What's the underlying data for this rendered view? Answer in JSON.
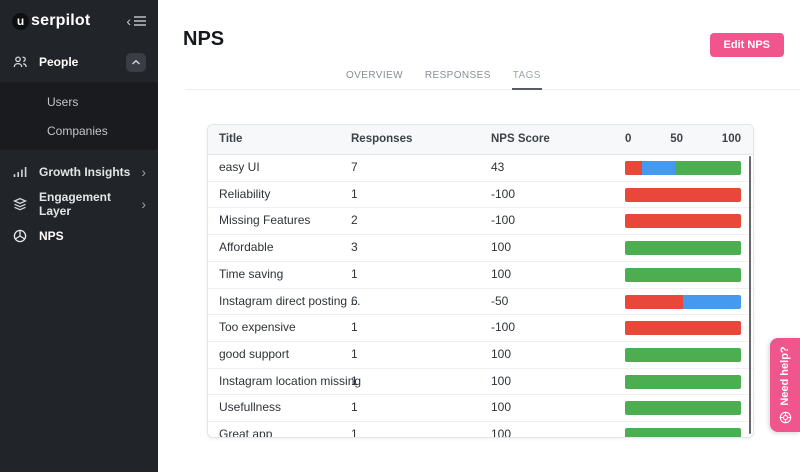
{
  "colors": {
    "pink": "#f0558c",
    "detractor": "#e8473a",
    "passive": "#459af0",
    "promoter": "#4cae50"
  },
  "sidebar": {
    "logo_badge": "u",
    "logo_word": "serpilot",
    "people": {
      "label": "People",
      "children": [
        "Users",
        "Companies"
      ]
    },
    "growth": {
      "label": "Growth Insights",
      "chevron": "›"
    },
    "engagement": {
      "label": "Engagement Layer",
      "chevron": "›"
    },
    "nps": {
      "label": "NPS"
    }
  },
  "header": {
    "title": "NPS",
    "edit_button_label": "Edit NPS"
  },
  "tabs": {
    "items": [
      {
        "label": "OVERVIEW",
        "active": false
      },
      {
        "label": "RESPONSES",
        "active": false
      },
      {
        "label": "TAGS",
        "active": true
      }
    ]
  },
  "table": {
    "columns": {
      "title": "Title",
      "responses": "Responses",
      "score": "NPS Score"
    },
    "scale_labels": [
      "0",
      "50",
      "100"
    ],
    "rows": [
      {
        "title": "easy UI",
        "responses": "7",
        "score": "43",
        "bar": [
          {
            "type": "detractor",
            "pct": 14.3
          },
          {
            "type": "passive",
            "pct": 28.6
          },
          {
            "type": "promoter",
            "pct": 57.1
          }
        ]
      },
      {
        "title": "Reliability",
        "responses": "1",
        "score": "-100",
        "bar": [
          {
            "type": "detractor",
            "pct": 100
          }
        ]
      },
      {
        "title": "Missing Features",
        "responses": "2",
        "score": "-100",
        "bar": [
          {
            "type": "detractor",
            "pct": 100
          }
        ]
      },
      {
        "title": "Affordable",
        "responses": "3",
        "score": "100",
        "bar": [
          {
            "type": "promoter",
            "pct": 100
          }
        ]
      },
      {
        "title": "Time saving",
        "responses": "1",
        "score": "100",
        "bar": [
          {
            "type": "promoter",
            "pct": 100
          }
        ]
      },
      {
        "title": "Instagram direct posting ...",
        "responses": "6",
        "score": "-50",
        "bar": [
          {
            "type": "detractor",
            "pct": 50
          },
          {
            "type": "passive",
            "pct": 50
          }
        ]
      },
      {
        "title": "Too expensive",
        "responses": "1",
        "score": "-100",
        "bar": [
          {
            "type": "detractor",
            "pct": 100
          }
        ]
      },
      {
        "title": "good support",
        "responses": "1",
        "score": "100",
        "bar": [
          {
            "type": "promoter",
            "pct": 100
          }
        ]
      },
      {
        "title": "Instagram location missing",
        "responses": "1",
        "score": "100",
        "bar": [
          {
            "type": "promoter",
            "pct": 100
          }
        ]
      },
      {
        "title": "Usefullness",
        "responses": "1",
        "score": "100",
        "bar": [
          {
            "type": "promoter",
            "pct": 100
          }
        ]
      },
      {
        "title": "Great app",
        "responses": "1",
        "score": "100",
        "bar": [
          {
            "type": "promoter",
            "pct": 100
          }
        ]
      }
    ]
  },
  "help_tab": {
    "label": "Need help?"
  }
}
